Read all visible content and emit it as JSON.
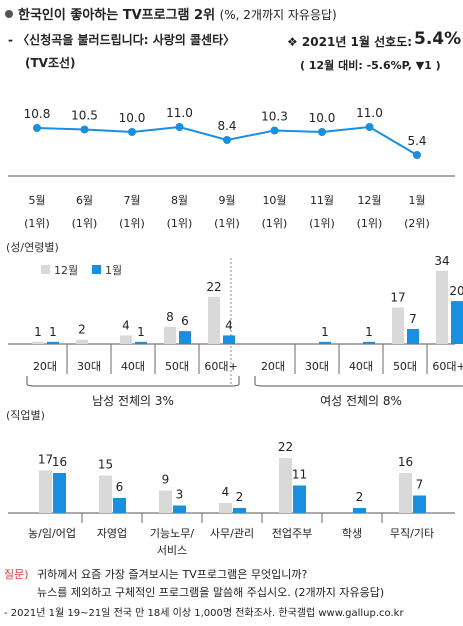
{
  "header": {
    "title": "한국인이 좋아하는 TV프로그램 2위",
    "title_note": "(%, 2개까지 자유응답)",
    "program_line": "- 〈신청곡을 불러드립니다: 사랑의 콜센타〉",
    "channel": "(TV조선)",
    "pref_label": "❖ 2021년 1월 선호도:",
    "pref_value": "5.4%",
    "pref_change": "( 12월 대비: -5.6%P, ▼1 )"
  },
  "colors": {
    "accent": "#1a8fe0",
    "light": "#d9d9d9",
    "line": "#1a8fe0"
  },
  "chart_data": [
    {
      "type": "line",
      "x": [
        "5월",
        "6월",
        "7월",
        "8월",
        "9월",
        "10월",
        "11월",
        "12월",
        "1월"
      ],
      "x_sub": [
        "(1위)",
        "(1위)",
        "(1위)",
        "(1위)",
        "(1위)",
        "(1위)",
        "(1위)",
        "(1위)",
        "(2위)"
      ],
      "values": [
        10.8,
        10.5,
        10.0,
        11.0,
        8.4,
        10.3,
        10.0,
        11.0,
        5.4
      ],
      "labels": [
        "10.8",
        "10.5",
        "10.0",
        "11.0",
        "8.4",
        "10.3",
        "10.0",
        "11.0",
        "5.4"
      ],
      "ylim": [
        0,
        12
      ]
    },
    {
      "type": "bar",
      "title": "(성/연령별)",
      "legend": [
        "12월",
        "1월"
      ],
      "groups": [
        {
          "caption": "남성 전체의 3%",
          "categories": [
            "20대",
            "30대",
            "40대",
            "50대",
            "60대+"
          ],
          "series": [
            {
              "name": "12월",
              "values": [
                1,
                2,
                4,
                8,
                22
              ],
              "labels": [
                "1",
                "2",
                "4",
                "8",
                "22"
              ]
            },
            {
              "name": "1월",
              "values": [
                1,
                0,
                1,
                6,
                4
              ],
              "labels": [
                "1",
                "",
                "1",
                "6",
                "4"
              ]
            }
          ]
        },
        {
          "caption": "여성 전체의 8%",
          "categories": [
            "20대",
            "30대",
            "40대",
            "50대",
            "60대+"
          ],
          "series": [
            {
              "name": "12월",
              "values": [
                0,
                0,
                0,
                17,
                34
              ],
              "labels": [
                "",
                "",
                "",
                "17",
                "34"
              ]
            },
            {
              "name": "1월",
              "values": [
                0,
                1,
                1,
                7,
                20
              ],
              "labels": [
                "",
                "1",
                "1",
                "7",
                "20"
              ]
            }
          ]
        }
      ],
      "ylim": [
        0,
        34
      ]
    },
    {
      "type": "bar",
      "title": "(직업별)",
      "categories": [
        "농/임/어업",
        "자영업",
        "기능노무/\n서비스",
        "사무/관리",
        "전업주부",
        "학생",
        "무직/기타"
      ],
      "series": [
        {
          "name": "12월",
          "values": [
            17,
            15,
            9,
            4,
            22,
            0,
            16
          ],
          "labels": [
            "17",
            "15",
            "9",
            "4",
            "22",
            "",
            "16"
          ]
        },
        {
          "name": "1월",
          "values": [
            16,
            6,
            3,
            2,
            11,
            2,
            7
          ],
          "labels": [
            "16",
            "6",
            "3",
            "2",
            "11",
            "2",
            "7"
          ]
        }
      ],
      "ylim": [
        0,
        22
      ]
    }
  ],
  "footer": {
    "question_label": "질문)",
    "question_line1": "귀하께서 요즘 가장 즐겨보시는 TV프로그램은 무엇입니까?",
    "question_line2": "뉴스를 제외하고 구체적인 프로그램을 말씀해 주십시오. (2개까지 자유응답)",
    "source": "- 2021년 1월 19~21일 전국 만 18세 이상 1,000명 전화조사. 한국갤럽 www.gallup.co.kr"
  }
}
